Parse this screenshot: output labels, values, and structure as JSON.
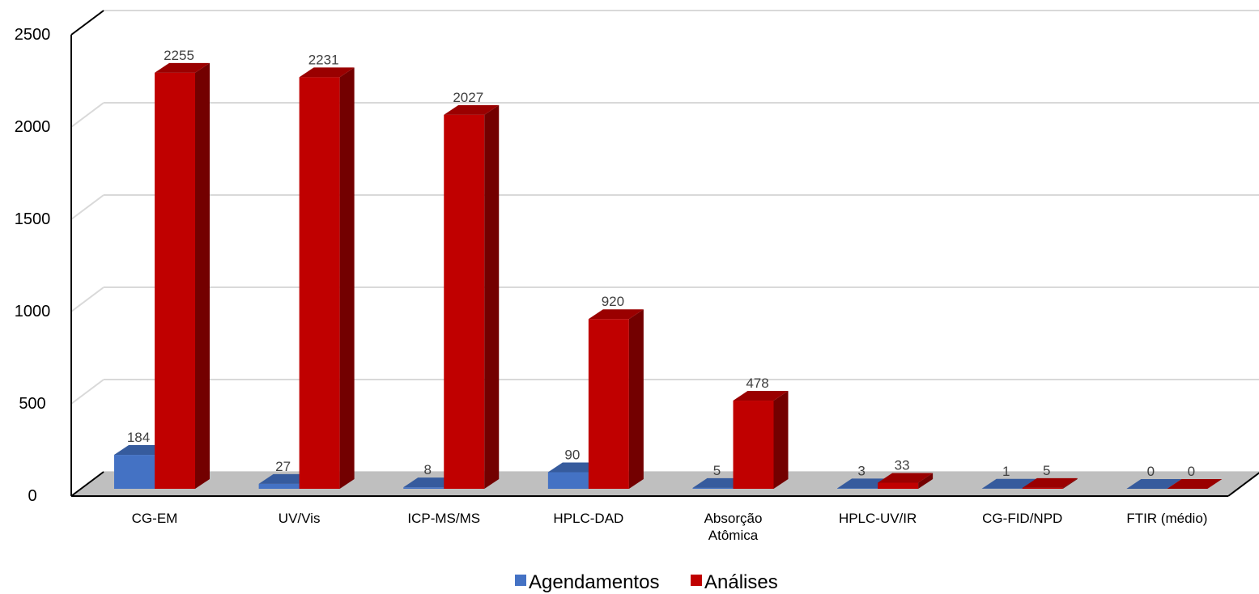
{
  "chart_data": {
    "type": "bar",
    "categories": [
      "CG-EM",
      "UV/Vis",
      "ICP-MS/MS",
      "HPLC-DAD",
      "Absorção Atômica",
      "HPLC-UV/IR",
      "CG-FID/NPD",
      "FTIR (médio)"
    ],
    "category_lines": [
      [
        "CG-EM"
      ],
      [
        "UV/Vis"
      ],
      [
        "ICP-MS/MS"
      ],
      [
        "HPLC-DAD"
      ],
      [
        "Absorção",
        "Atômica"
      ],
      [
        "HPLC-UV/IR"
      ],
      [
        "CG-FID/NPD"
      ],
      [
        "FTIR (médio)"
      ]
    ],
    "series": [
      {
        "name": "Agendamentos",
        "color": "#4472C4",
        "values": [
          184,
          27,
          8,
          90,
          5,
          3,
          1,
          0
        ]
      },
      {
        "name": "Análises",
        "color": "#C00000",
        "values": [
          2255,
          2231,
          2027,
          920,
          478,
          33,
          5,
          0
        ]
      }
    ],
    "ylim": [
      0,
      2500
    ],
    "yticks": [
      "0",
      "500",
      "1000",
      "1500",
      "2000",
      "2500"
    ],
    "grid": true,
    "legend_position": "bottom",
    "data_labels": true,
    "style": "3d-column"
  }
}
